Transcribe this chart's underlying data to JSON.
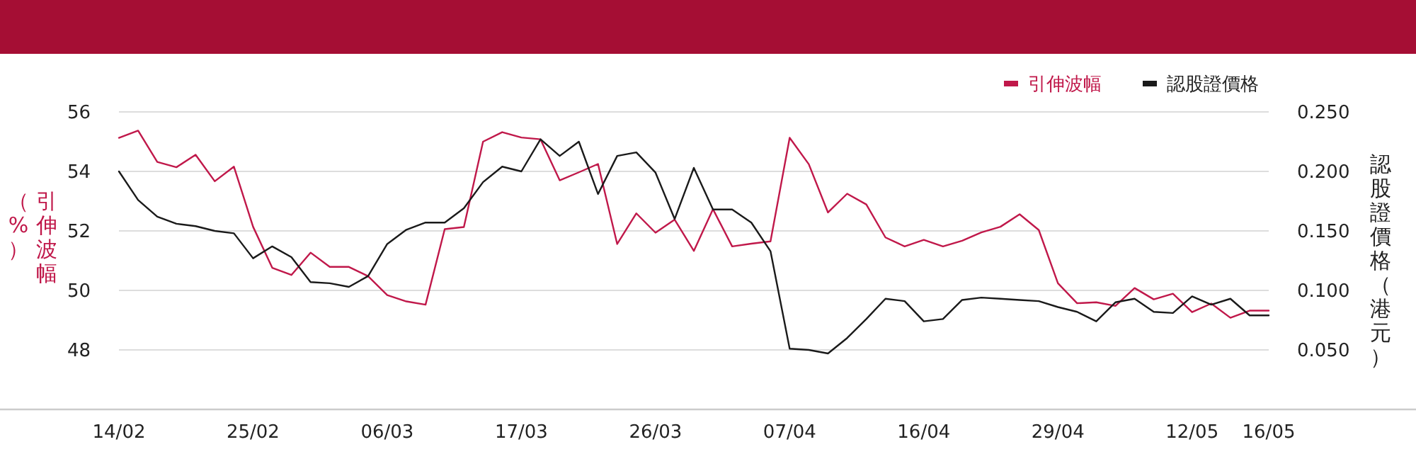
{
  "chart_data": {
    "type": "line",
    "ylabel": "引伸波幅（%）",
    "y2label": "認股證價格（港元）",
    "categories": [
      "14/02",
      null,
      null,
      null,
      null,
      null,
      null,
      "25/02",
      null,
      null,
      null,
      null,
      null,
      null,
      "06/03",
      null,
      null,
      null,
      null,
      null,
      null,
      "17/03",
      null,
      null,
      null,
      null,
      null,
      null,
      "26/03",
      null,
      null,
      null,
      null,
      null,
      null,
      "07/04",
      null,
      null,
      null,
      null,
      null,
      null,
      "16/04",
      null,
      null,
      null,
      null,
      null,
      null,
      "29/04",
      null,
      null,
      null,
      null,
      null,
      null,
      "12/05",
      null,
      null,
      null,
      "16/05"
    ],
    "series": [
      {
        "name": "引伸波幅",
        "color": "#c0184a",
        "values": [
          55.13,
          55.37,
          54.32,
          54.14,
          54.56,
          53.67,
          54.16,
          52.14,
          50.76,
          50.52,
          51.27,
          50.79,
          50.79,
          50.48,
          49.84,
          49.63,
          49.52,
          52.06,
          52.13,
          55.0,
          55.32,
          55.14,
          55.08,
          53.7,
          53.97,
          54.25,
          51.56,
          52.59,
          51.94,
          52.38,
          51.33,
          52.73,
          51.48,
          51.57,
          51.65,
          55.13,
          54.24,
          52.62,
          53.25,
          52.89,
          51.78,
          51.48,
          51.7,
          51.48,
          51.67,
          51.95,
          52.14,
          52.56,
          52.03,
          50.24,
          49.57,
          49.6,
          49.48,
          50.08,
          49.7,
          49.89,
          49.27,
          49.56,
          49.08,
          49.32,
          49.32
        ]
      },
      {
        "name": "認股證價格",
        "color": "#1a1a1a",
        "axis": "y2",
        "values": [
          0.2,
          0.176,
          0.162,
          0.156,
          0.154,
          0.15,
          0.148,
          0.127,
          0.137,
          0.128,
          0.107,
          0.106,
          0.103,
          0.112,
          0.139,
          0.151,
          0.157,
          0.157,
          0.169,
          0.191,
          0.204,
          0.2,
          0.227,
          0.213,
          0.225,
          0.181,
          0.213,
          0.216,
          0.199,
          0.16,
          0.203,
          0.168,
          0.168,
          0.157,
          0.133,
          0.051,
          0.05,
          0.047,
          0.06,
          0.076,
          0.093,
          0.091,
          0.074,
          0.076,
          0.092,
          0.094,
          0.093,
          0.092,
          0.091,
          0.086,
          0.082,
          0.074,
          0.09,
          0.093,
          0.082,
          0.081,
          0.095,
          0.088,
          0.093,
          0.079,
          0.079
        ]
      }
    ],
    "ylim": [
      46,
      56
    ],
    "yticks": [
      48,
      50,
      52,
      54,
      56
    ],
    "y2lim": [
      0,
      0.25
    ],
    "y2ticks": [
      {
        "value": 0.05,
        "label": "0.050"
      },
      {
        "value": 0.1,
        "label": "0.100"
      },
      {
        "value": 0.15,
        "label": "0.150"
      },
      {
        "value": 0.2,
        "label": "0.200"
      },
      {
        "value": 0.25,
        "label": "0.250"
      }
    ],
    "grid": "y",
    "legend": "top right",
    "line_style": "solid"
  }
}
